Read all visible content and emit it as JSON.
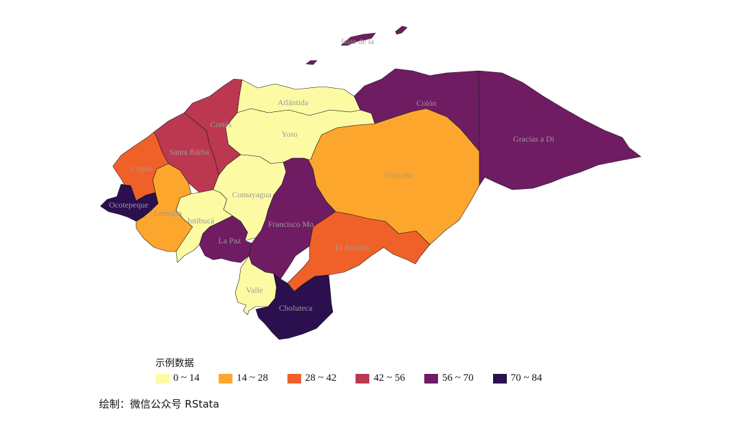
{
  "legend": {
    "title": "示例数据",
    "items": [
      {
        "label": "0 ~ 14",
        "color": "#fcfba4"
      },
      {
        "label": "14 ~ 28",
        "color": "#fca62e"
      },
      {
        "label": "28 ~ 42",
        "color": "#f0612a"
      },
      {
        "label": "42 ~ 56",
        "color": "#bc3850"
      },
      {
        "label": "56 ~ 70",
        "color": "#6f1c63"
      },
      {
        "label": "70 ~ 84",
        "color": "#2b0f4f"
      }
    ]
  },
  "caption": "绘制：微信公众号 RStata",
  "regions": [
    {
      "name": "Islas de la",
      "class": "56 ~ 70"
    },
    {
      "name": "Atlántida",
      "class": "0 ~ 14"
    },
    {
      "name": "Colón",
      "class": "56 ~ 70"
    },
    {
      "name": "Gracias a Di",
      "class": "56 ~ 70"
    },
    {
      "name": "Cortés",
      "class": "42 ~ 56"
    },
    {
      "name": "Yoro",
      "class": "0 ~ 14"
    },
    {
      "name": "Santa Bárba",
      "class": "42 ~ 56"
    },
    {
      "name": "Copán",
      "class": "28 ~ 42"
    },
    {
      "name": "Olancho",
      "class": "14 ~ 28"
    },
    {
      "name": "Comayagua",
      "class": "0 ~ 14"
    },
    {
      "name": "Ocotepeque",
      "class": "70 ~ 84"
    },
    {
      "name": "Lempira",
      "class": "14 ~ 28"
    },
    {
      "name": "Intibucá",
      "class": "0 ~ 14"
    },
    {
      "name": "Francisco Mo",
      "class": "56 ~ 70"
    },
    {
      "name": "La Paz",
      "class": "56 ~ 70"
    },
    {
      "name": "El Paraíso",
      "class": "28 ~ 42"
    },
    {
      "name": "Valle",
      "class": "0 ~ 14"
    },
    {
      "name": "Choluteca",
      "class": "70 ~ 84"
    }
  ]
}
